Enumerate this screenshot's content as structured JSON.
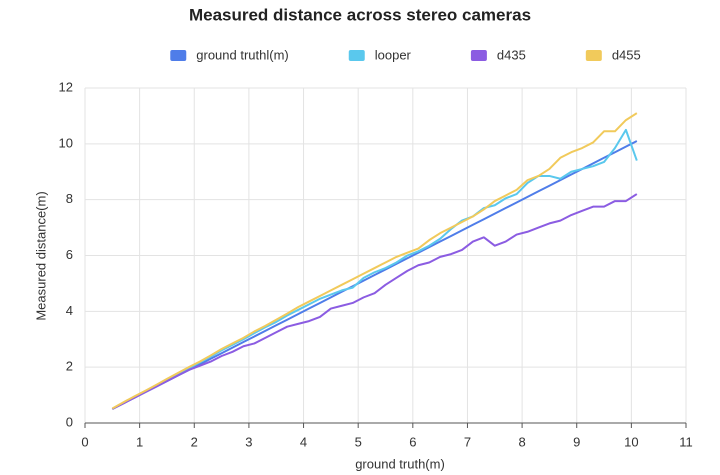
{
  "chart_data": {
    "type": "line",
    "title": "Measured distance across stereo cameras",
    "x_label": "ground truth(m)",
    "y_label": "Measured distance(m)",
    "x": [
      0.5,
      0.7,
      0.9,
      1.1,
      1.3,
      1.5,
      1.7,
      1.9,
      2.1,
      2.3,
      2.5,
      2.7,
      2.9,
      3.1,
      3.3,
      3.5,
      3.7,
      3.9,
      4.1,
      4.3,
      4.5,
      4.7,
      4.9,
      5.1,
      5.3,
      5.5,
      5.7,
      5.9,
      6.1,
      6.3,
      6.5,
      6.7,
      6.9,
      7.1,
      7.3,
      7.5,
      7.7,
      7.9,
      8.1,
      8.3,
      8.5,
      8.7,
      8.9,
      9.1,
      9.3,
      9.5,
      9.7,
      9.9,
      10.1
    ],
    "series": [
      {
        "name": "ground truthl(m)",
        "color": "#4f7de9",
        "values": [
          0.5,
          0.7,
          0.9,
          1.1,
          1.3,
          1.5,
          1.7,
          1.9,
          2.1,
          2.3,
          2.5,
          2.7,
          2.9,
          3.1,
          3.3,
          3.5,
          3.7,
          3.9,
          4.1,
          4.3,
          4.5,
          4.7,
          4.9,
          5.1,
          5.3,
          5.5,
          5.7,
          5.9,
          6.1,
          6.3,
          6.5,
          6.7,
          6.9,
          7.1,
          7.3,
          7.5,
          7.7,
          7.9,
          8.1,
          8.3,
          8.5,
          8.7,
          8.9,
          9.1,
          9.3,
          9.5,
          9.7,
          9.9,
          10.1
        ]
      },
      {
        "name": "looper",
        "color": "#5ac8ed",
        "values": [
          0.5,
          0.72,
          0.93,
          1.13,
          1.34,
          1.55,
          1.76,
          1.96,
          2.17,
          2.38,
          2.6,
          2.8,
          3.0,
          3.22,
          3.43,
          3.62,
          3.85,
          4.05,
          4.25,
          4.45,
          4.6,
          4.75,
          4.85,
          5.2,
          5.4,
          5.55,
          5.75,
          6.0,
          6.15,
          6.35,
          6.6,
          6.95,
          7.25,
          7.4,
          7.7,
          7.8,
          8.05,
          8.2,
          8.6,
          8.85,
          8.85,
          8.75,
          9.0,
          9.1,
          9.2,
          9.35,
          9.85,
          10.5,
          9.4
        ]
      },
      {
        "name": "d435",
        "color": "#8b5ce2",
        "values": [
          0.5,
          0.7,
          0.9,
          1.1,
          1.3,
          1.5,
          1.7,
          1.9,
          2.05,
          2.2,
          2.4,
          2.55,
          2.75,
          2.85,
          3.05,
          3.25,
          3.45,
          3.55,
          3.65,
          3.8,
          4.1,
          4.2,
          4.3,
          4.5,
          4.65,
          4.95,
          5.2,
          5.45,
          5.65,
          5.75,
          5.95,
          6.05,
          6.2,
          6.5,
          6.65,
          6.35,
          6.5,
          6.75,
          6.85,
          7.0,
          7.15,
          7.25,
          7.45,
          7.6,
          7.75,
          7.75,
          7.95,
          7.95,
          8.2
        ]
      },
      {
        "name": "d455",
        "color": "#f1ca5b",
        "values": [
          0.52,
          0.74,
          0.95,
          1.15,
          1.36,
          1.58,
          1.79,
          2.0,
          2.2,
          2.42,
          2.65,
          2.85,
          3.05,
          3.28,
          3.48,
          3.7,
          3.92,
          4.15,
          4.35,
          4.55,
          4.75,
          4.95,
          5.15,
          5.35,
          5.55,
          5.75,
          5.95,
          6.1,
          6.25,
          6.55,
          6.8,
          7.0,
          7.2,
          7.4,
          7.65,
          7.95,
          8.15,
          8.35,
          8.7,
          8.85,
          9.1,
          9.5,
          9.7,
          9.85,
          10.05,
          10.45,
          10.45,
          10.85,
          11.1
        ]
      }
    ],
    "xlim": [
      0,
      11
    ],
    "xticks": [
      0,
      1,
      2,
      3,
      4,
      5,
      6,
      7,
      8,
      9,
      10,
      11
    ],
    "ylim": [
      0,
      12
    ],
    "yticks": [
      0,
      2,
      4,
      6,
      8,
      10,
      12
    ],
    "grid": true,
    "legend": "top"
  }
}
